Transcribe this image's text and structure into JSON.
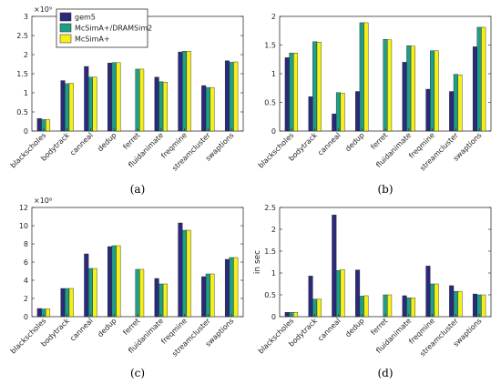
{
  "colors": {
    "gem5": "#2b2a7a",
    "dramsim": "#1f9e89",
    "mcsima": "#f5f01a",
    "axis": "#333333",
    "grid": "#dddddd"
  },
  "legend": [
    "gem5",
    "McSimA+/DRAMSim2",
    "McSimA+"
  ],
  "chart_data": [
    {
      "type": "bar",
      "panel_label": "(a)",
      "exponent_label": "×10⁹",
      "ylabel": "",
      "ylim": [
        0,
        3
      ],
      "yticks": [
        0,
        0.5,
        1,
        1.5,
        2,
        2.5,
        3
      ],
      "categories": [
        "blackscholes",
        "bodytrack",
        "canneal",
        "dedup",
        "ferret",
        "fluidanimate",
        "freqmine",
        "streamcluster",
        "swaptions"
      ],
      "series": [
        {
          "name": "gem5",
          "values": [
            0.33,
            1.32,
            1.69,
            1.78,
            0,
            1.41,
            2.07,
            1.19,
            1.84
          ]
        },
        {
          "name": "McSimA+/DRAMSim2",
          "values": [
            0.3,
            1.24,
            1.41,
            1.79,
            1.62,
            1.29,
            2.09,
            1.14,
            1.8
          ]
        },
        {
          "name": "McSimA+",
          "values": [
            0.3,
            1.25,
            1.41,
            1.79,
            1.62,
            1.28,
            2.09,
            1.14,
            1.81
          ]
        }
      ]
    },
    {
      "type": "bar",
      "panel_label": "(b)",
      "exponent_label": "",
      "ylabel": "",
      "ylim": [
        0,
        2
      ],
      "yticks": [
        0,
        0.5,
        1,
        1.5,
        2
      ],
      "categories": [
        "blackscholes",
        "bodytrack",
        "canneal",
        "dedup",
        "ferret",
        "fluidanimate",
        "freqmine",
        "streamcluster",
        "swaptions"
      ],
      "series": [
        {
          "name": "gem5",
          "values": [
            1.28,
            0.6,
            0.3,
            0.69,
            0,
            1.2,
            0.73,
            0.69,
            1.47
          ]
        },
        {
          "name": "McSimA+/DRAMSim2",
          "values": [
            1.36,
            1.56,
            0.67,
            1.89,
            1.6,
            1.49,
            1.4,
            0.99,
            1.81
          ]
        },
        {
          "name": "McSimA+",
          "values": [
            1.36,
            1.55,
            0.66,
            1.89,
            1.59,
            1.48,
            1.4,
            0.98,
            1.81
          ]
        }
      ]
    },
    {
      "type": "bar",
      "panel_label": "(c)",
      "exponent_label": "×10⁸",
      "ylabel": "",
      "ylim": [
        0,
        12
      ],
      "yticks": [
        0,
        2,
        4,
        6,
        8,
        10,
        12
      ],
      "categories": [
        "blackscholes",
        "bodytrack",
        "canneal",
        "dedup",
        "ferret",
        "fluidanimate",
        "freqmine",
        "streamcluster",
        "swaptions"
      ],
      "series": [
        {
          "name": "gem5",
          "values": [
            0.9,
            3.1,
            6.9,
            7.7,
            0,
            4.2,
            10.3,
            4.4,
            6.3
          ]
        },
        {
          "name": "McSimA+/DRAMSim2",
          "values": [
            0.85,
            3.1,
            5.3,
            7.8,
            5.2,
            3.6,
            9.5,
            4.7,
            6.5
          ]
        },
        {
          "name": "McSimA+",
          "values": [
            0.85,
            3.1,
            5.3,
            7.8,
            5.2,
            3.6,
            9.5,
            4.7,
            6.5
          ]
        }
      ]
    },
    {
      "type": "bar",
      "panel_label": "(d)",
      "exponent_label": "",
      "ylabel": "in sec",
      "ylim": [
        0,
        2.5
      ],
      "yticks": [
        0,
        0.5,
        1,
        1.5,
        2,
        2.5
      ],
      "categories": [
        "blackscholes",
        "bodytrack",
        "canneal",
        "dedup",
        "ferret",
        "fluidanimate",
        "freqmine",
        "streamcluster",
        "swaptions"
      ],
      "series": [
        {
          "name": "gem5",
          "values": [
            0.1,
            0.93,
            2.33,
            1.07,
            0,
            0.48,
            1.16,
            0.71,
            0.52
          ]
        },
        {
          "name": "McSimA+/DRAMSim2",
          "values": [
            0.1,
            0.4,
            1.06,
            0.47,
            0.5,
            0.43,
            0.75,
            0.58,
            0.5
          ]
        },
        {
          "name": "McSimA+",
          "values": [
            0.1,
            0.4,
            1.08,
            0.48,
            0.5,
            0.43,
            0.75,
            0.58,
            0.5
          ]
        }
      ]
    }
  ]
}
